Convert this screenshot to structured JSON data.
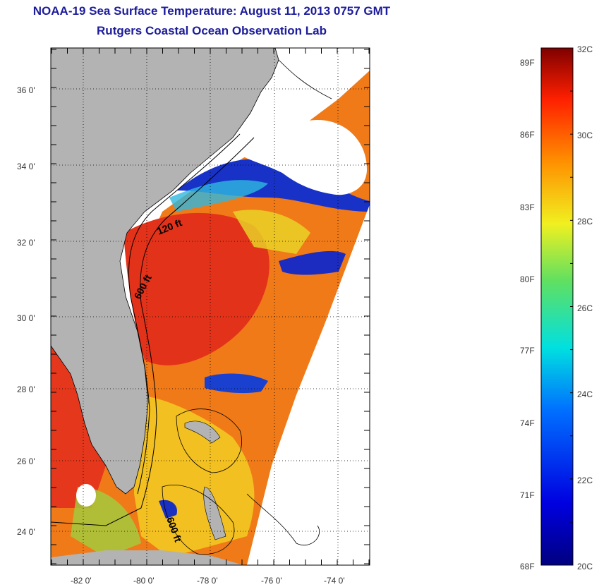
{
  "title": "NOAA-19 Sea Surface Temperature:  August 11, 2013 0757 GMT",
  "subtitle": "Rutgers Coastal Ocean Observation Lab",
  "map": {
    "lat_labels": [
      "36 0'",
      "34 0'",
      "32 0'",
      "30 0'",
      "28 0'",
      "26 0'",
      "24 0'"
    ],
    "lon_labels": [
      "-82 0'",
      "-80 0'",
      "-78 0'",
      "-76 0'",
      "-74 0'"
    ],
    "lat_range": [
      23,
      37.2
    ],
    "lon_range": [
      -83,
      -73
    ],
    "contour_labels": [
      "120 ft",
      "600 ft",
      "600 ft"
    ],
    "colors": {
      "land": "#b3b3b3",
      "cloud": "#ffffff",
      "warm": "#e8401c",
      "cold": "#1020b0"
    }
  },
  "colorbar": {
    "celsius_labels": [
      "32C",
      "30C",
      "28C",
      "26C",
      "24C",
      "22C",
      "20C"
    ],
    "fahrenheit_labels": [
      "89F",
      "86F",
      "83F",
      "80F",
      "77F",
      "74F",
      "71F",
      "68F"
    ],
    "range_c": [
      20,
      32
    ]
  }
}
